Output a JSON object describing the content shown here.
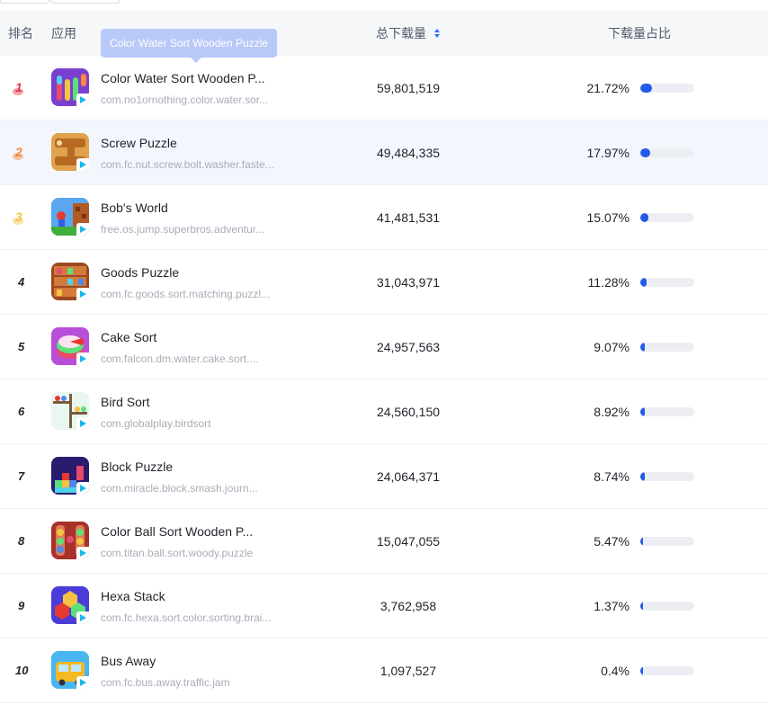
{
  "header": {
    "rank": "排名",
    "app": "应用",
    "downloads": "总下载量",
    "share": "下载量占比"
  },
  "tooltip": "Color Water Sort Wooden Puzzle",
  "colors": {
    "accent": "#2559e8",
    "bar_track": "#eceef3",
    "highlight_row": "#f3f6fc",
    "medal_gold": "#e8364a",
    "medal_silver": "#f08a3c",
    "medal_bronze": "#f5c242"
  },
  "rows": [
    {
      "rank": "1",
      "name": "Color Water Sort Wooden P...",
      "pkg": "com.no1ornothing.color.water.sor...",
      "downloads": "59,801,519",
      "share": "21.72%",
      "share_value": 21.72,
      "icon": "water-sort-icon"
    },
    {
      "rank": "2",
      "name": "Screw Puzzle",
      "pkg": "com.fc.nut.screw.bolt.washer.faste...",
      "downloads": "49,484,335",
      "share": "17.97%",
      "share_value": 17.97,
      "icon": "screw-puzzle-icon"
    },
    {
      "rank": "3",
      "name": "Bob's World",
      "pkg": "free.os.jump.superbros.adventur...",
      "downloads": "41,481,531",
      "share": "15.07%",
      "share_value": 15.07,
      "icon": "bobs-world-icon"
    },
    {
      "rank": "4",
      "name": "Goods Puzzle",
      "pkg": "com.fc.goods.sort.matching.puzzl...",
      "downloads": "31,043,971",
      "share": "11.28%",
      "share_value": 11.28,
      "icon": "goods-puzzle-icon"
    },
    {
      "rank": "5",
      "name": "Cake Sort",
      "pkg": "com.falcon.dm.water.cake.sort....",
      "downloads": "24,957,563",
      "share": "9.07%",
      "share_value": 9.07,
      "icon": "cake-sort-icon"
    },
    {
      "rank": "6",
      "name": "Bird Sort",
      "pkg": "com.globalplay.birdsort",
      "downloads": "24,560,150",
      "share": "8.92%",
      "share_value": 8.92,
      "icon": "bird-sort-icon"
    },
    {
      "rank": "7",
      "name": "Block Puzzle",
      "pkg": "com.miracle.block.smash.journ...",
      "downloads": "24,064,371",
      "share": "8.74%",
      "share_value": 8.74,
      "icon": "block-puzzle-icon"
    },
    {
      "rank": "8",
      "name": "Color Ball Sort Wooden P...",
      "pkg": "com.titan.ball.sort.woody.puzzle",
      "downloads": "15,047,055",
      "share": "5.47%",
      "share_value": 5.47,
      "icon": "ball-sort-icon"
    },
    {
      "rank": "9",
      "name": "Hexa Stack",
      "pkg": "com.fc.hexa.sort.color.sorting.brai...",
      "downloads": "3,762,958",
      "share": "1.37%",
      "share_value": 1.37,
      "icon": "hexa-stack-icon"
    },
    {
      "rank": "10",
      "name": "Bus Away",
      "pkg": "com.fc.bus.away.traffic.jam",
      "downloads": "1,097,527",
      "share": "0.4%",
      "share_value": 0.4,
      "icon": "bus-away-icon"
    }
  ]
}
